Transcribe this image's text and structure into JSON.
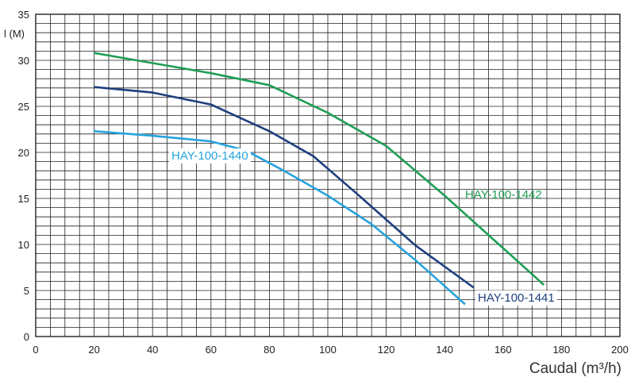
{
  "chart_data": {
    "type": "line",
    "ylabel": "l (M)",
    "xlabel": "Caudal (m³/h)",
    "xlim": [
      0,
      200
    ],
    "ylim": [
      0,
      35
    ],
    "x_ticks": [
      "0",
      "20",
      "40",
      "60",
      "80",
      "100",
      "120",
      "140",
      "160",
      "180",
      "200"
    ],
    "y_ticks": [
      "0",
      "5",
      "10",
      "15",
      "20",
      "25",
      "30",
      "35"
    ],
    "grid": true,
    "series": [
      {
        "name": "HAY-100-1442",
        "color": "#1f9e55",
        "points": [
          [
            20,
            30.8
          ],
          [
            40,
            29.7
          ],
          [
            60,
            28.6
          ],
          [
            80,
            27.3
          ],
          [
            100,
            24.3
          ],
          [
            120,
            20.7
          ],
          [
            140,
            15.3
          ],
          [
            160,
            9.6
          ],
          [
            174,
            5.6
          ]
        ]
      },
      {
        "name": "HAY-100-1441",
        "color": "#1e3f7e",
        "points": [
          [
            20,
            27.1
          ],
          [
            40,
            26.5
          ],
          [
            60,
            25.2
          ],
          [
            80,
            22.3
          ],
          [
            95,
            19.6
          ],
          [
            110,
            15.5
          ],
          [
            130,
            9.9
          ],
          [
            150,
            5.3
          ]
        ]
      },
      {
        "name": "HAY-100-1440",
        "color": "#27a3de",
        "points": [
          [
            20,
            22.3
          ],
          [
            40,
            21.8
          ],
          [
            60,
            21.2
          ],
          [
            72,
            20.2
          ],
          [
            85,
            18.0
          ],
          [
            100,
            15.3
          ],
          [
            115,
            12.2
          ],
          [
            130,
            8.3
          ],
          [
            147,
            3.5
          ]
        ]
      }
    ]
  }
}
